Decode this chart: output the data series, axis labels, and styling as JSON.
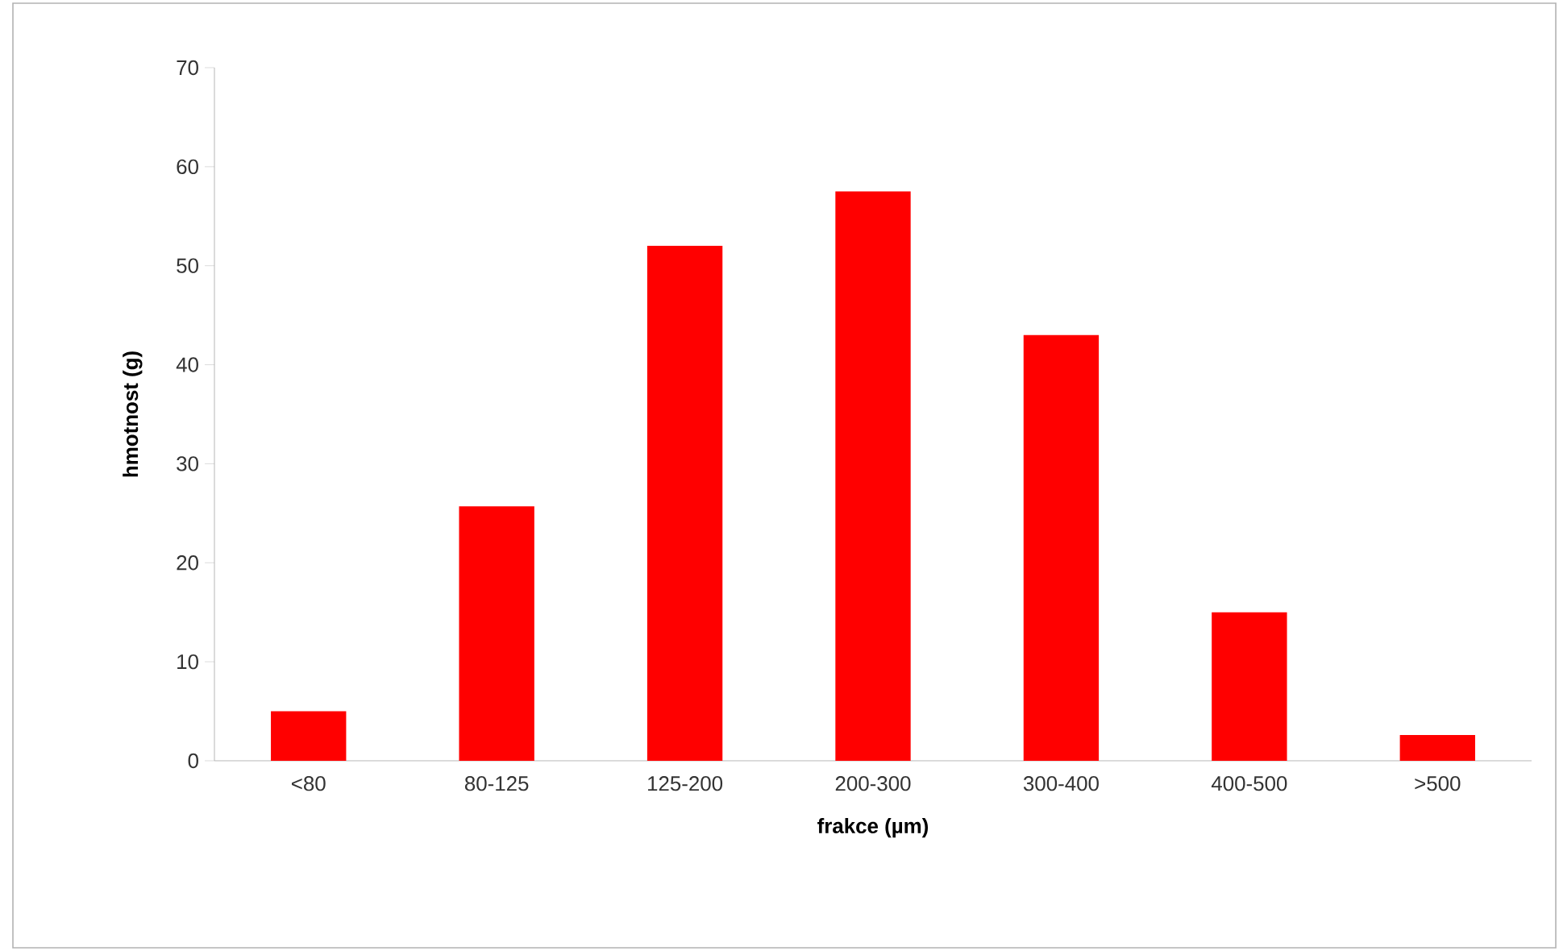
{
  "chart_data": {
    "type": "bar",
    "xlabel": "frakce (µm)",
    "ylabel": "hmotnost (g)",
    "categories": [
      "<80",
      "80-125",
      "125-200",
      "200-300",
      "300-400",
      "400-500",
      ">500"
    ],
    "values": [
      5,
      25.7,
      52,
      57.5,
      43,
      15,
      2.6
    ],
    "color": "#ff0000",
    "ylim": [
      0,
      70
    ],
    "yticks": [
      0,
      10,
      20,
      30,
      40,
      50,
      60,
      70
    ]
  }
}
